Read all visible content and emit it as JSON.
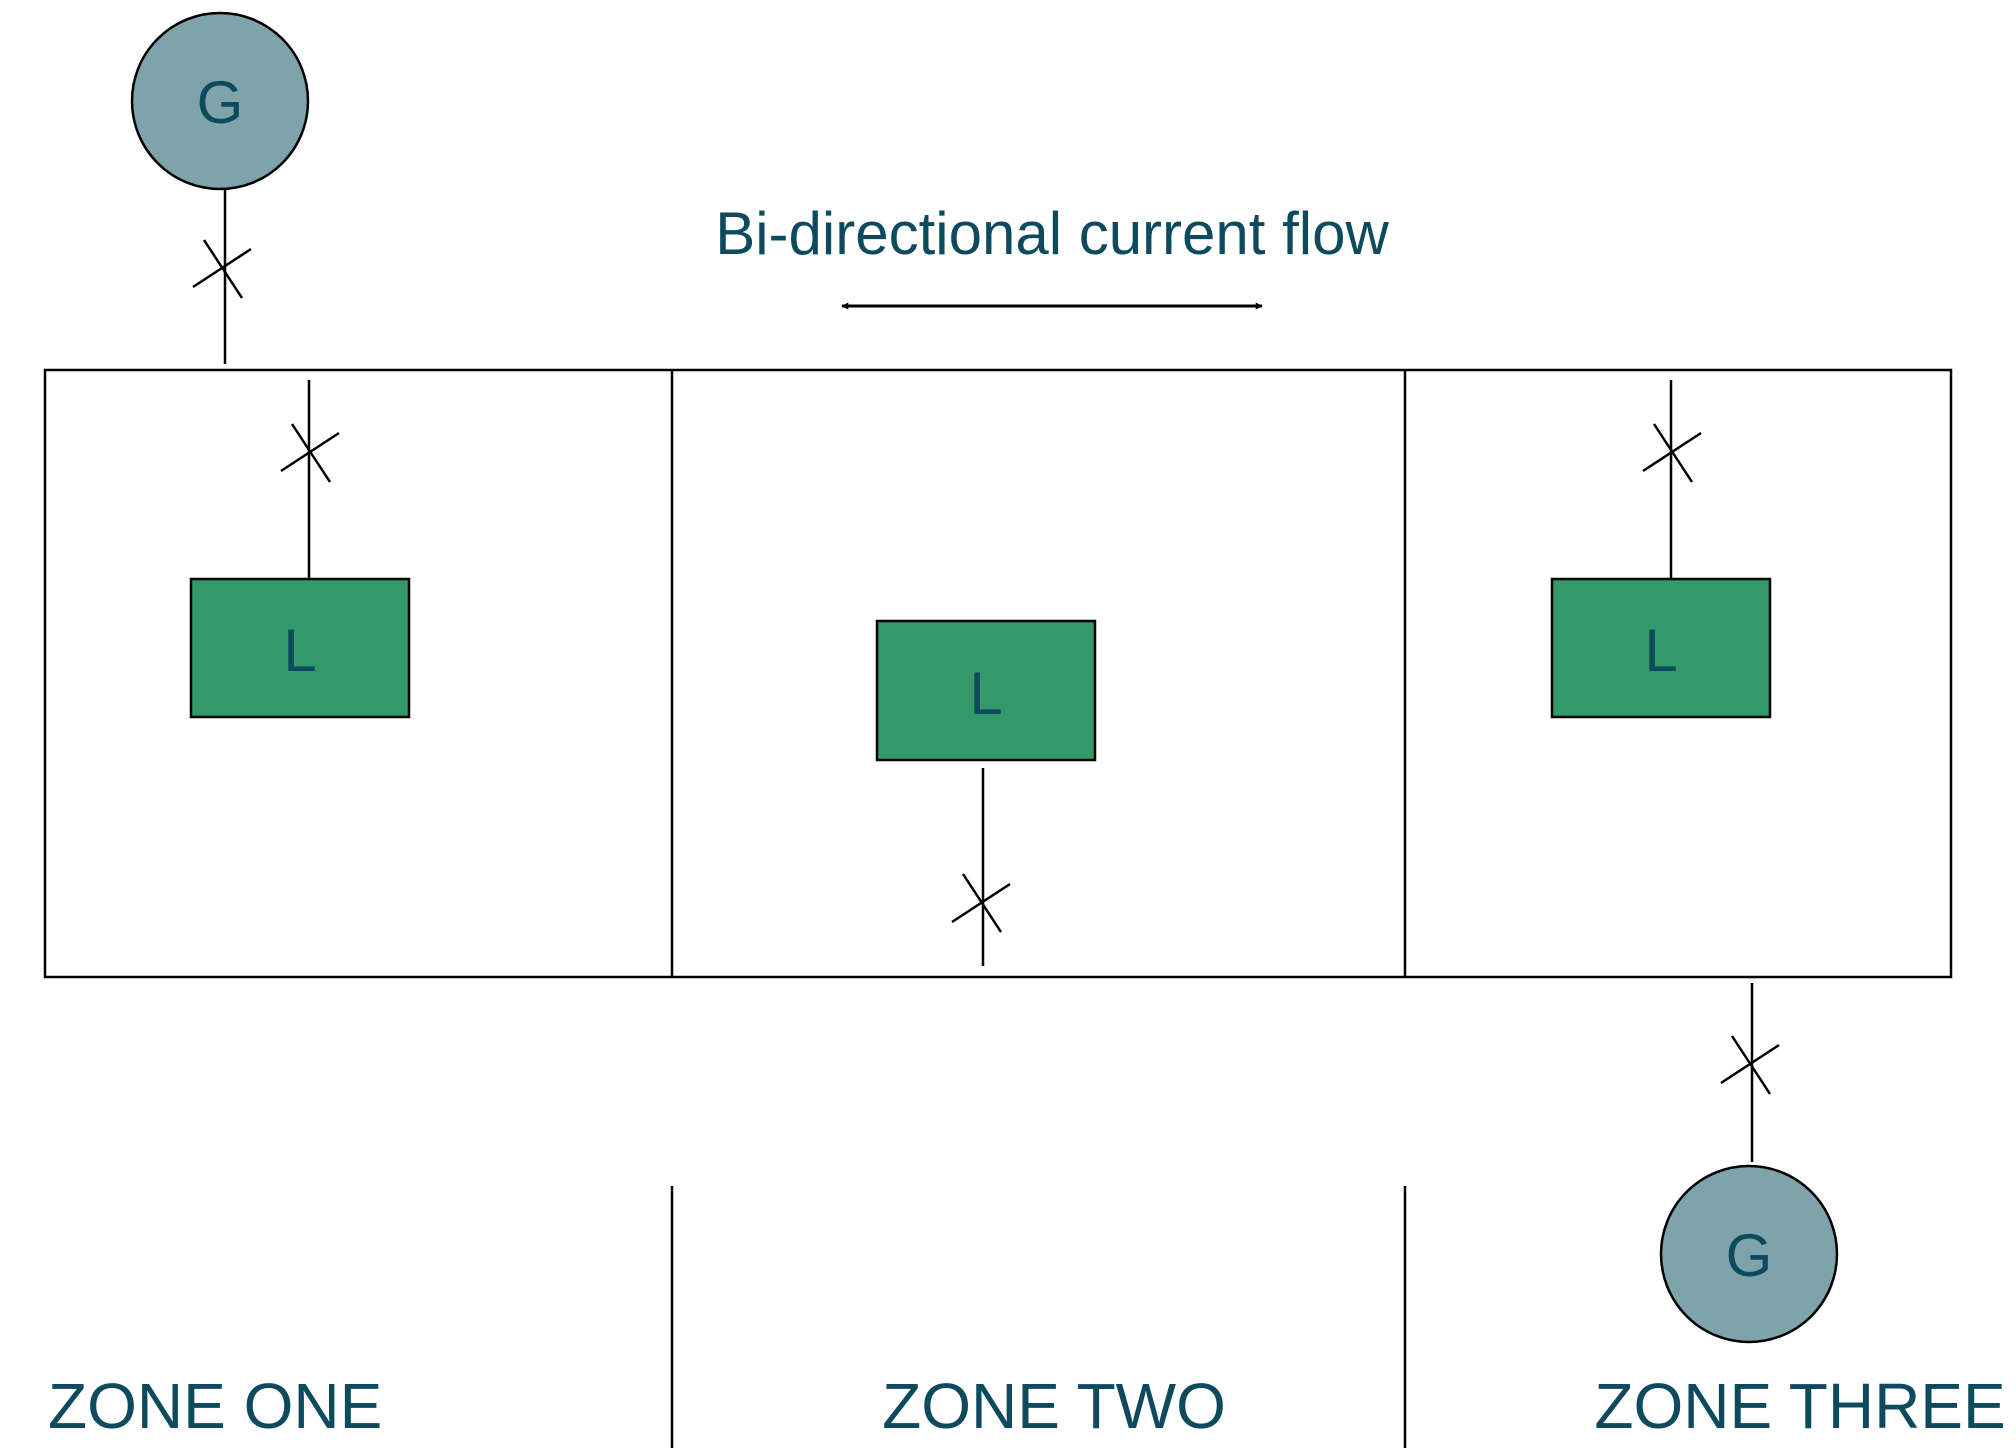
{
  "diagram": {
    "title": "Bi-directional current flow",
    "generator_label": "G",
    "load_label": "L",
    "zones": [
      "ZONE ONE",
      "ZONE TWO",
      "ZONE THREE"
    ]
  },
  "colors": {
    "generator_fill": "#7fa3ab",
    "load_fill": "#339968",
    "text": "#0d4a5e",
    "line": "#000000"
  },
  "icons": {
    "breaker": "breaker-x-icon",
    "arrow": "double-headed-arrow-icon"
  }
}
